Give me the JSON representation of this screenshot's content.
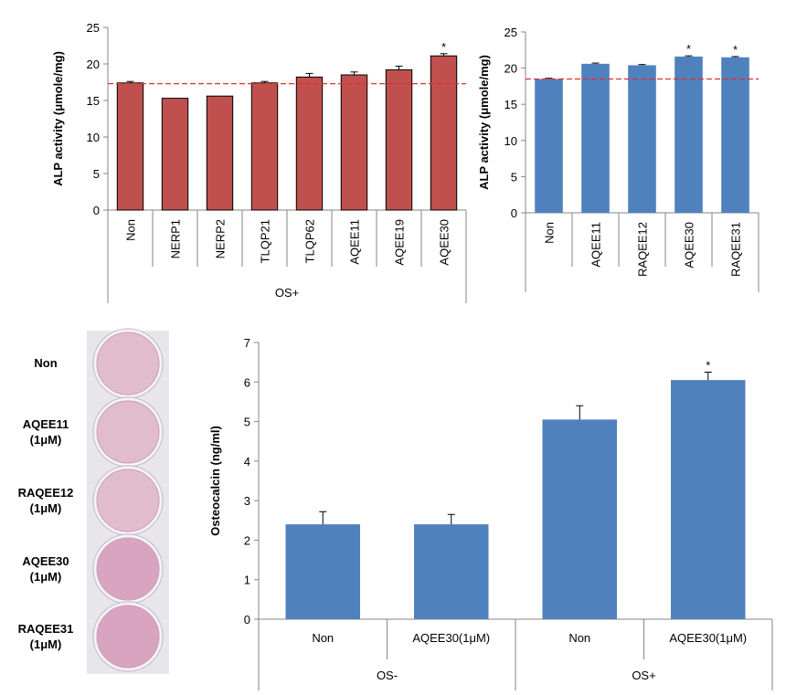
{
  "chart_data": [
    {
      "type": "bar",
      "y_label": "ALP activity (μmole/mg)",
      "categories": [
        "Non",
        "NERP1",
        "NERP2",
        "TLQP21",
        "TLQP62",
        "AQEE11",
        "AQEE19",
        "AQEE30"
      ],
      "values": [
        17.4,
        15.3,
        15.6,
        17.4,
        18.2,
        18.5,
        19.2,
        21.1
      ],
      "errors": [
        0.2,
        0,
        0,
        0.2,
        0.5,
        0.4,
        0.5,
        0.3
      ],
      "significance": [
        null,
        null,
        null,
        null,
        null,
        null,
        null,
        "*"
      ],
      "groups": [
        {
          "label": "OS+",
          "span": 8
        }
      ],
      "color": "#c0504d",
      "reference_line": {
        "value": 17.3,
        "color": "#e0302a"
      },
      "ylim": [
        0,
        25
      ],
      "yticks": [
        0,
        5,
        10,
        15,
        20,
        25
      ]
    },
    {
      "type": "bar",
      "y_label": "ALP activity (μmole/mg)",
      "categories": [
        "Non",
        "AQEE11",
        "RAQEE12",
        "AQEE30",
        "RAQEE31"
      ],
      "values": [
        18.5,
        20.6,
        20.4,
        21.6,
        21.5
      ],
      "errors": [
        0.1,
        0.1,
        0.1,
        0.1,
        0.1
      ],
      "significance": [
        null,
        null,
        null,
        "*",
        "*"
      ],
      "color": "#4f81bd",
      "reference_line": {
        "value": 18.5,
        "color": "#e0302a"
      },
      "ylim": [
        0,
        25
      ],
      "yticks": [
        0,
        5,
        10,
        15,
        20,
        25
      ]
    },
    {
      "type": "bar",
      "y_label": "Osteocalcin (ng/ml)",
      "categories": [
        "Non",
        "AQEE30(1μM)",
        "Non",
        "AQEE30(1μM)"
      ],
      "values": [
        2.4,
        2.4,
        5.05,
        6.05
      ],
      "errors": [
        0.32,
        0.25,
        0.35,
        0.2
      ],
      "significance": [
        null,
        null,
        null,
        "*"
      ],
      "groups": [
        {
          "label": "OS-",
          "span": 2
        },
        {
          "label": "OS+",
          "span": 2
        }
      ],
      "color": "#4f81bd",
      "ylim": [
        0,
        7
      ],
      "yticks": [
        0,
        1,
        2,
        3,
        4,
        5,
        6,
        7
      ]
    }
  ],
  "stain_panel": {
    "labels": [
      "Non",
      "AQEE11\n(1μM)",
      "RAQEE12\n(1μM)",
      "AQEE30\n(1μM)",
      "RAQEE31\n(1μM)"
    ]
  }
}
